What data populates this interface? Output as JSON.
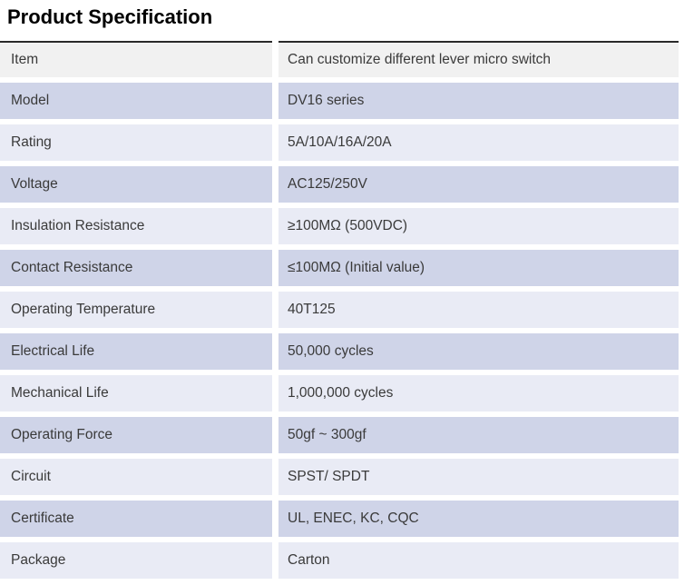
{
  "page_title": "Product Specification",
  "colors": {
    "bg-page": "#ffffff",
    "row-gray": "#f1f1f1",
    "row-medium": "#cfd4e8",
    "row-light": "#e9ebf5",
    "border-dark": "#2a2a2a",
    "text-cell": "#3a3a3a",
    "text-title": "#000000"
  },
  "table": {
    "rows": [
      {
        "label": "Item",
        "value": "Can customize different lever micro switch",
        "shade": "gray"
      },
      {
        "label": "Model",
        "value": "DV16 series",
        "shade": "medium"
      },
      {
        "label": "Rating",
        "value": "5A/10A/16A/20A",
        "shade": "light"
      },
      {
        "label": "Voltage",
        "value": "AC125/250V",
        "shade": "medium"
      },
      {
        "label": "Insulation Resistance",
        "value": "≥100MΩ (500VDC)",
        "shade": "light"
      },
      {
        "label": "Contact Resistance",
        "value": "≤100MΩ (Initial value)",
        "shade": "medium"
      },
      {
        "label": "Operating Temperature",
        "value": "40T125",
        "shade": "light"
      },
      {
        "label": "Electrical Life",
        "value": "50,000 cycles",
        "shade": "medium"
      },
      {
        "label": "Mechanical Life",
        "value": "1,000,000 cycles",
        "shade": "light"
      },
      {
        "label": "Operating Force",
        "value": "50gf ~ 300gf",
        "shade": "medium"
      },
      {
        "label": "Circuit",
        "value": "SPST/ SPDT",
        "shade": "light"
      },
      {
        "label": "Certificate",
        "value": "UL, ENEC, KC, CQC",
        "shade": "medium"
      },
      {
        "label": "Package",
        "value": "Carton",
        "shade": "light"
      }
    ]
  }
}
